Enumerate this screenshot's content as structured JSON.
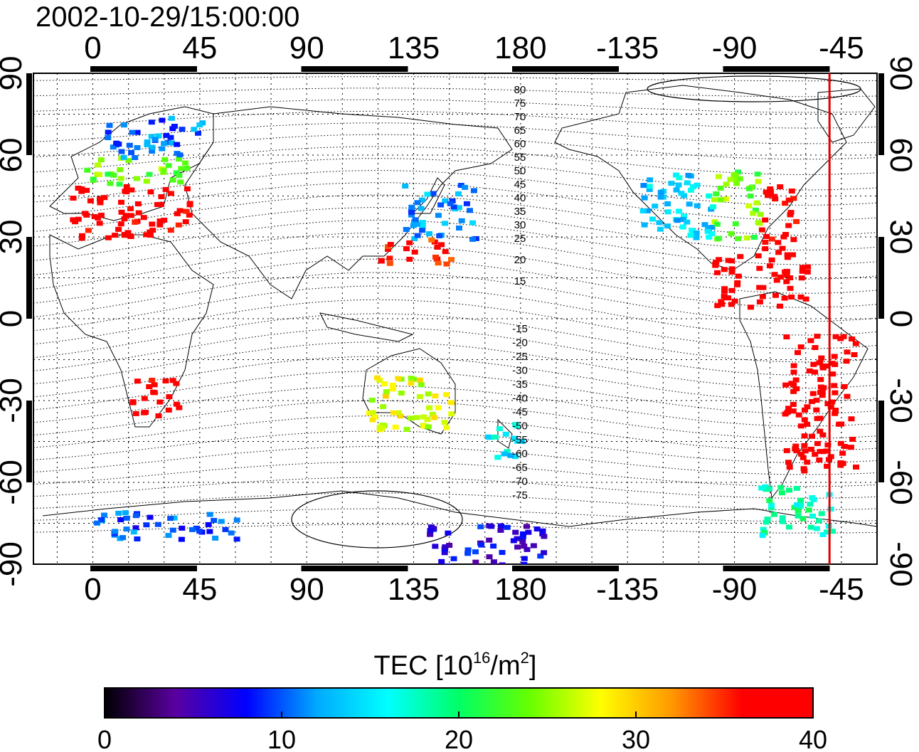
{
  "title": "2002-10-29/15:00:00",
  "top_axis_labels": [
    "0",
    "45",
    "90",
    "135",
    "180",
    "-135",
    "-90",
    "-45"
  ],
  "bottom_axis_labels": [
    "0",
    "45",
    "90",
    "135",
    "180",
    "-135",
    "-90",
    "-45"
  ],
  "left_axis_labels": [
    "90",
    "60",
    "30",
    "0",
    "-30",
    "-60",
    "-90"
  ],
  "right_axis_labels": [
    "90",
    "60",
    "30",
    "0",
    "-30",
    "-60",
    "-90"
  ],
  "contour_labels_north": [
    "80",
    "75",
    "70",
    "65",
    "60",
    "55",
    "50",
    "45",
    "40",
    "35",
    "30",
    "25",
    "20",
    "15"
  ],
  "contour_labels_south": [
    "-15",
    "-20",
    "-25",
    "-30",
    "-35",
    "-40",
    "-45",
    "-50",
    "-55",
    "-60",
    "-65",
    "-70",
    "-75"
  ],
  "colorbar": {
    "label_main": "TEC  [10",
    "label_sup": "16",
    "label_mid": "/m",
    "label_sup2": "2",
    "label_end": "]",
    "tick_labels": [
      "0",
      "10",
      "20",
      "30",
      "40"
    ],
    "min": 0,
    "max": 40,
    "colors": [
      "#000000",
      "#5a00a0",
      "#0000ff",
      "#00aaff",
      "#00ffff",
      "#00ff66",
      "#66ff00",
      "#ffff00",
      "#ff9900",
      "#ff0000",
      "#ff0000"
    ]
  },
  "marker": {
    "longitude": -50,
    "color": "#e00000"
  },
  "chart_data": {
    "type": "heatmap",
    "title": "2002-10-29/15:00:00",
    "x_unit": "longitude",
    "y_unit": "latitude",
    "ylim": [
      -90,
      90
    ],
    "value_range": [
      0,
      40
    ],
    "regions": [
      {
        "lon": [
          -10,
          40
        ],
        "lat": [
          30,
          50
        ],
        "tec": 38
      },
      {
        "lon": [
          -5,
          40
        ],
        "lat": [
          50,
          60
        ],
        "tec": 24
      },
      {
        "lon": [
          5,
          45
        ],
        "lat": [
          60,
          75
        ],
        "tec": 11
      },
      {
        "lon": [
          130,
          160
        ],
        "lat": [
          30,
          50
        ],
        "tec": 12
      },
      {
        "lon": [
          120,
          150
        ],
        "lat": [
          20,
          30
        ],
        "tec": 36
      },
      {
        "lon": [
          -130,
          -100
        ],
        "lat": [
          30,
          55
        ],
        "tec": 14
      },
      {
        "lon": [
          -100,
          -80
        ],
        "lat": [
          30,
          55
        ],
        "tec": 24
      },
      {
        "lon": [
          -80,
          -65
        ],
        "lat": [
          25,
          50
        ],
        "tec": 38
      },
      {
        "lon": [
          -100,
          -60
        ],
        "lat": [
          5,
          25
        ],
        "tec": 39
      },
      {
        "lon": [
          -70,
          -40
        ],
        "lat": [
          -55,
          -5
        ],
        "tec": 39
      },
      {
        "lon": [
          15,
          35
        ],
        "lat": [
          -35,
          -20
        ],
        "tec": 38
      },
      {
        "lon": [
          115,
          150
        ],
        "lat": [
          -40,
          -20
        ],
        "tec": 27
      },
      {
        "lon": [
          165,
          180
        ],
        "lat": [
          -50,
          -35
        ],
        "tec": 15
      },
      {
        "lon": [
          0,
          60
        ],
        "lat": [
          -80,
          -70
        ],
        "tec": 10
      },
      {
        "lon": [
          140,
          190
        ],
        "lat": [
          -90,
          -75
        ],
        "tec": 7
      },
      {
        "lon": [
          -80,
          -50
        ],
        "lat": [
          -80,
          -60
        ],
        "tec": 18
      }
    ]
  }
}
